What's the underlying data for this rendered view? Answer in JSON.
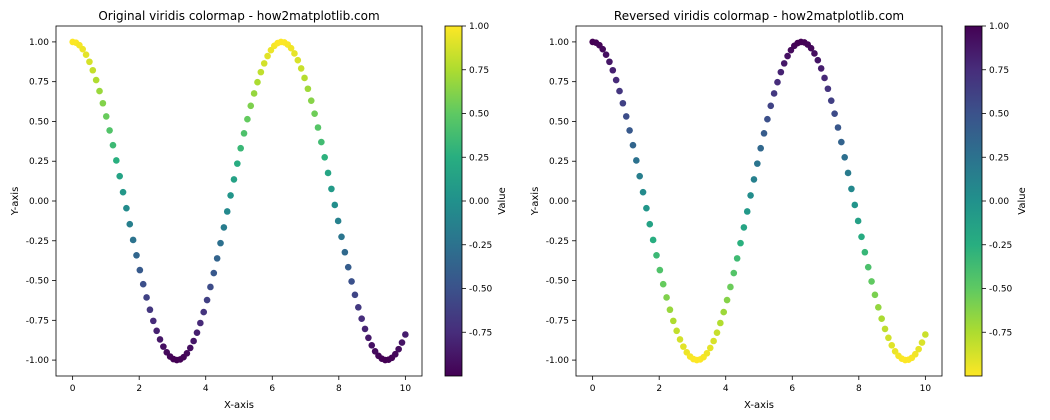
{
  "figure": {
    "background": "#ffffff"
  },
  "chart_data": [
    {
      "type": "scatter",
      "title": "Original viridis colormap - how2matplotlib.com",
      "xlabel": "X-axis",
      "ylabel": "Y-axis",
      "xlim": [
        -0.5,
        10.5
      ],
      "ylim": [
        -1.1,
        1.1
      ],
      "xticks": [
        0,
        2,
        4,
        6,
        8,
        10
      ],
      "xtick_labels": [
        "0",
        "2",
        "4",
        "6",
        "8",
        "10"
      ],
      "yticks": [
        1.0,
        0.75,
        0.5,
        0.25,
        0.0,
        -0.25,
        -0.5,
        -0.75,
        -1.0
      ],
      "ytick_labels": [
        "1.00",
        "0.75",
        "0.50",
        "0.25",
        "0.00",
        "-0.25",
        "-0.50",
        "-0.75",
        "-1.00"
      ],
      "grid": false,
      "series": [
        {
          "function": "cos(x)",
          "x_start": 0,
          "x_end": 10,
          "n_points": 100,
          "color_by": "y"
        }
      ],
      "colorbar": {
        "label": "Value",
        "colormap": "viridis",
        "reversed": false,
        "range": [
          -1.0,
          1.0
        ],
        "ticks": [
          1.0,
          0.75,
          0.5,
          0.25,
          0.0,
          -0.25,
          -0.5,
          -0.75
        ],
        "tick_labels": [
          "1.00",
          "0.75",
          "0.50",
          "0.25",
          "0.00",
          "-0.25",
          "-0.50",
          "-0.75"
        ]
      }
    },
    {
      "type": "scatter",
      "title": "Reversed viridis colormap - how2matplotlib.com",
      "xlabel": "X-axis",
      "ylabel": "Y-axis",
      "xlim": [
        -0.5,
        10.5
      ],
      "ylim": [
        -1.1,
        1.1
      ],
      "xticks": [
        0,
        2,
        4,
        6,
        8,
        10
      ],
      "xtick_labels": [
        "0",
        "2",
        "4",
        "6",
        "8",
        "10"
      ],
      "yticks": [
        1.0,
        0.75,
        0.5,
        0.25,
        0.0,
        -0.25,
        -0.5,
        -0.75,
        -1.0
      ],
      "ytick_labels": [
        "1.00",
        "0.75",
        "0.50",
        "0.25",
        "0.00",
        "-0.25",
        "-0.50",
        "-0.75",
        "-1.00"
      ],
      "grid": false,
      "series": [
        {
          "function": "cos(x)",
          "x_start": 0,
          "x_end": 10,
          "n_points": 100,
          "color_by": "y"
        }
      ],
      "colorbar": {
        "label": "Value",
        "colormap": "viridis",
        "reversed": true,
        "range": [
          -1.0,
          1.0
        ],
        "ticks": [
          1.0,
          0.75,
          0.5,
          0.25,
          0.0,
          -0.25,
          -0.5,
          -0.75
        ],
        "tick_labels": [
          "1.00",
          "0.75",
          "0.50",
          "0.25",
          "0.00",
          "-0.25",
          "-0.50",
          "-0.75"
        ]
      }
    }
  ]
}
